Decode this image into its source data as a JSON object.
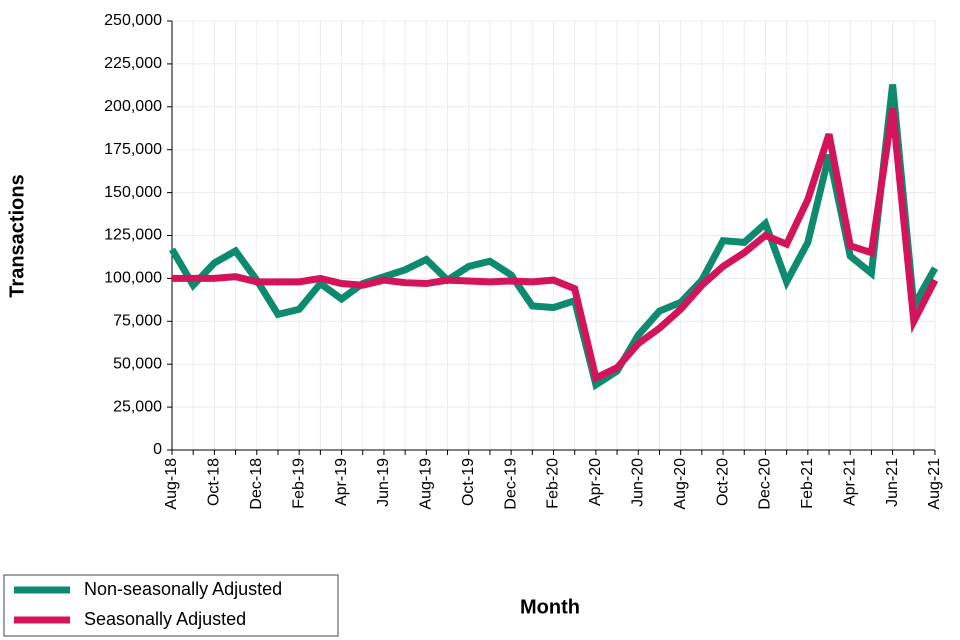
{
  "chart_data": {
    "type": "line",
    "x_label": "Month",
    "y_label": "Transactions",
    "categories": [
      "Aug-18",
      null,
      "Oct-18",
      null,
      "Dec-18",
      null,
      "Feb-19",
      null,
      "Apr-19",
      null,
      "Jun-19",
      null,
      "Aug-19",
      null,
      "Oct-19",
      null,
      "Dec-19",
      null,
      "Feb-20",
      null,
      "Apr-20",
      null,
      "Jun-20",
      null,
      "Aug-20",
      null,
      "Oct-20",
      null,
      "Dec-20",
      null,
      "Feb-21",
      null,
      "Apr-21",
      null,
      "Jun-21",
      null,
      "Aug-21"
    ],
    "series": [
      {
        "name": "Non-seasonally Adjusted",
        "color": "#0e8a6f",
        "values": [
          117000,
          96000,
          109000,
          116000,
          99000,
          79000,
          82000,
          97000,
          88000,
          97000,
          101000,
          105000,
          111000,
          99000,
          107000,
          110000,
          102000,
          84000,
          83000,
          87000,
          38000,
          46000,
          67000,
          81000,
          86000,
          99000,
          122000,
          121000,
          132000,
          98000,
          121000,
          172000,
          113000,
          103000,
          213000,
          84000,
          106000
        ]
      },
      {
        "name": "Seasonally Adjusted",
        "color": "#d4145a",
        "values": [
          100000,
          100000,
          100000,
          101000,
          98000,
          98000,
          98000,
          100000,
          97000,
          96000,
          99000,
          97500,
          97000,
          99000,
          98500,
          98000,
          98500,
          98000,
          99000,
          94000,
          42000,
          48000,
          62000,
          71000,
          82000,
          96000,
          107000,
          115000,
          125000,
          120000,
          146000,
          184000,
          119000,
          115000,
          199000,
          75000,
          99000
        ]
      }
    ],
    "ylim": [
      0,
      250000
    ],
    "yticks": [
      0,
      {
        "value": 25000,
        "label": "25,000"
      },
      {
        "value": 50000,
        "label": "50,000"
      },
      {
        "value": 75000,
        "label": "75,000"
      },
      {
        "value": 100000,
        "label": "100,000"
      },
      {
        "value": 125000,
        "label": "125,000"
      },
      {
        "value": 150000,
        "label": "150,000"
      },
      {
        "value": 175000,
        "label": "175,000"
      },
      {
        "value": 200000,
        "label": "200,000"
      },
      {
        "value": 225000,
        "label": "225,000"
      },
      {
        "value": 250000,
        "label": "250,000"
      }
    ],
    "grid": true,
    "legend": "bottom-left"
  }
}
